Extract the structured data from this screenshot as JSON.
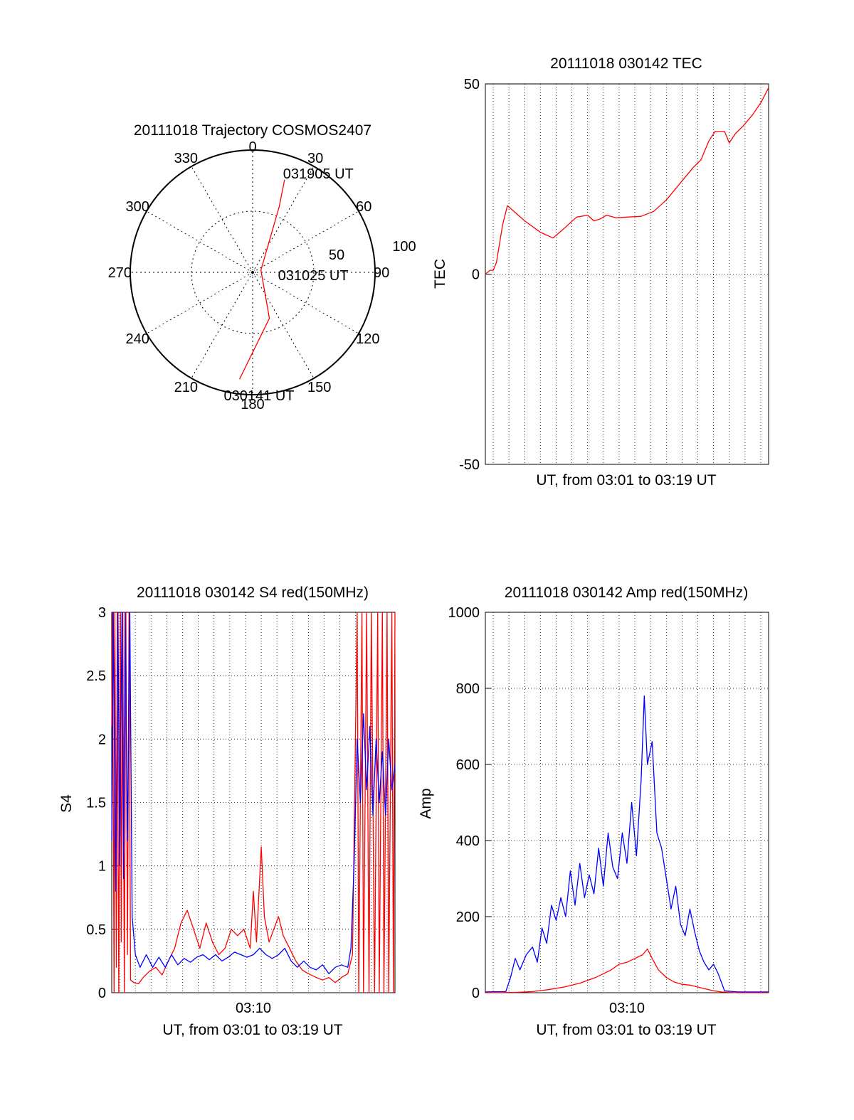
{
  "chart_data": [
    {
      "type": "polar",
      "title": "20111018 Trajectory COSMOS2407",
      "angle_labels": [
        "0",
        "30",
        "60",
        "90",
        "120",
        "150",
        "180",
        "210",
        "240",
        "270",
        "300",
        "330"
      ],
      "radius_labels": [
        "50",
        "100"
      ],
      "radius_range": [
        0,
        100
      ],
      "trajectory": {
        "color": "#ff0000",
        "points": [
          {
            "az": 187,
            "el_r": 88
          },
          {
            "az": 160,
            "el_r": 40
          },
          {
            "az": 75,
            "el_r": 7
          },
          {
            "az": 22,
            "el_r": 58
          },
          {
            "az": 19,
            "el_r": 80
          }
        ]
      },
      "annotations": [
        {
          "text": "031905 UT",
          "az": 19,
          "el_r": 80
        },
        {
          "text": "031025 UT",
          "az": 75,
          "el_r": 7
        },
        {
          "text": "030141 UT",
          "az": 187,
          "el_r": 88
        }
      ]
    },
    {
      "type": "line",
      "title": "20111018 030142 TEC",
      "xlabel": "UT, from 03:01 to 03:19 UT",
      "ylabel": "TEC",
      "xlim": [
        0,
        18
      ],
      "ylim": [
        -50,
        50
      ],
      "yticks": [
        "-50",
        "0",
        "50"
      ],
      "grid": true,
      "series": [
        {
          "color": "#ff0000",
          "points": [
            [
              0.0,
              0
            ],
            [
              0.3,
              1
            ],
            [
              0.5,
              1
            ],
            [
              0.7,
              3
            ],
            [
              0.9,
              8
            ],
            [
              1.1,
              13
            ],
            [
              1.4,
              18
            ],
            [
              2.5,
              14
            ],
            [
              3.5,
              11
            ],
            [
              4.3,
              9.5
            ],
            [
              5.0,
              12
            ],
            [
              5.8,
              15
            ],
            [
              6.5,
              15.5
            ],
            [
              6.9,
              14
            ],
            [
              7.3,
              14.5
            ],
            [
              7.7,
              15.5
            ],
            [
              8.3,
              14.8
            ],
            [
              9.0,
              15
            ],
            [
              9.9,
              15.2
            ],
            [
              10.7,
              16.5
            ],
            [
              11.5,
              19.5
            ],
            [
              12.5,
              24.5
            ],
            [
              13.2,
              28
            ],
            [
              13.7,
              30
            ],
            [
              14.2,
              35
            ],
            [
              14.6,
              37.5
            ],
            [
              15.2,
              37.5
            ],
            [
              15.5,
              34.5
            ],
            [
              15.9,
              37
            ],
            [
              16.4,
              39
            ],
            [
              17.0,
              42
            ],
            [
              17.5,
              45
            ],
            [
              18.0,
              49
            ]
          ]
        }
      ]
    },
    {
      "type": "line",
      "title": "20111018 030142 S4 red(150MHz)",
      "xlabel": "UT, from 03:01 to 03:19 UT",
      "ylabel": "S4",
      "xlim": [
        0,
        18
      ],
      "ylim": [
        0,
        3
      ],
      "xtick_label": "03:10",
      "xtick_value": 9,
      "yticks": [
        "0",
        "0.5",
        "1",
        "1.5",
        "2",
        "2.5",
        "3"
      ],
      "grid": true,
      "series": [
        {
          "color": "#ff0000",
          "points": [
            [
              0.0,
              2.1
            ],
            [
              0.05,
              3
            ],
            [
              0.15,
              0
            ],
            [
              0.2,
              3
            ],
            [
              0.3,
              0.2
            ],
            [
              0.35,
              3
            ],
            [
              0.45,
              0
            ],
            [
              0.55,
              3
            ],
            [
              0.6,
              0.4
            ],
            [
              0.7,
              3
            ],
            [
              0.8,
              0
            ],
            [
              0.9,
              3
            ],
            [
              1.0,
              0.3
            ],
            [
              1.1,
              3
            ],
            [
              1.2,
              0.1
            ],
            [
              1.4,
              0.08
            ],
            [
              1.7,
              0.07
            ],
            [
              2.0,
              0.12
            ],
            [
              2.4,
              0.17
            ],
            [
              2.8,
              0.2
            ],
            [
              3.2,
              0.14
            ],
            [
              3.6,
              0.25
            ],
            [
              4.0,
              0.35
            ],
            [
              4.4,
              0.55
            ],
            [
              4.8,
              0.65
            ],
            [
              5.2,
              0.5
            ],
            [
              5.6,
              0.35
            ],
            [
              6.0,
              0.55
            ],
            [
              6.4,
              0.4
            ],
            [
              6.8,
              0.3
            ],
            [
              7.2,
              0.35
            ],
            [
              7.6,
              0.5
            ],
            [
              8.0,
              0.45
            ],
            [
              8.4,
              0.5
            ],
            [
              8.8,
              0.35
            ],
            [
              9.0,
              0.8
            ],
            [
              9.2,
              0.4
            ],
            [
              9.5,
              1.15
            ],
            [
              9.7,
              0.6
            ],
            [
              10.0,
              0.4
            ],
            [
              10.3,
              0.5
            ],
            [
              10.6,
              0.6
            ],
            [
              10.9,
              0.45
            ],
            [
              11.3,
              0.35
            ],
            [
              11.7,
              0.25
            ],
            [
              12.1,
              0.18
            ],
            [
              12.5,
              0.15
            ],
            [
              13.0,
              0.12
            ],
            [
              13.4,
              0.1
            ],
            [
              13.8,
              0.12
            ],
            [
              14.2,
              0.08
            ],
            [
              14.6,
              0.12
            ],
            [
              15.0,
              0.15
            ],
            [
              15.3,
              0.3
            ],
            [
              15.6,
              3
            ],
            [
              15.7,
              0
            ],
            [
              15.9,
              3
            ],
            [
              16.0,
              0
            ],
            [
              16.2,
              3
            ],
            [
              16.35,
              0
            ],
            [
              16.5,
              3
            ],
            [
              16.7,
              0
            ],
            [
              16.9,
              3
            ],
            [
              17.0,
              0
            ],
            [
              17.2,
              3
            ],
            [
              17.3,
              0
            ],
            [
              17.5,
              3
            ],
            [
              17.6,
              0
            ],
            [
              17.8,
              3
            ],
            [
              17.9,
              0
            ],
            [
              18.0,
              3
            ]
          ]
        },
        {
          "color": "#0000ff",
          "points": [
            [
              0.0,
              1.2
            ],
            [
              0.1,
              3
            ],
            [
              0.25,
              0.8
            ],
            [
              0.4,
              3
            ],
            [
              0.5,
              1.0
            ],
            [
              0.65,
              3
            ],
            [
              0.75,
              0.9
            ],
            [
              0.85,
              3
            ],
            [
              1.0,
              1.2
            ],
            [
              1.15,
              3
            ],
            [
              1.3,
              0.6
            ],
            [
              1.5,
              0.3
            ],
            [
              1.8,
              0.2
            ],
            [
              2.2,
              0.3
            ],
            [
              2.6,
              0.2
            ],
            [
              3.0,
              0.28
            ],
            [
              3.4,
              0.2
            ],
            [
              3.8,
              0.3
            ],
            [
              4.2,
              0.22
            ],
            [
              4.6,
              0.27
            ],
            [
              5.0,
              0.24
            ],
            [
              5.4,
              0.28
            ],
            [
              5.8,
              0.3
            ],
            [
              6.2,
              0.26
            ],
            [
              6.6,
              0.3
            ],
            [
              7.0,
              0.25
            ],
            [
              7.4,
              0.28
            ],
            [
              7.8,
              0.32
            ],
            [
              8.2,
              0.3
            ],
            [
              8.6,
              0.28
            ],
            [
              9.0,
              0.3
            ],
            [
              9.4,
              0.35
            ],
            [
              9.8,
              0.3
            ],
            [
              10.2,
              0.27
            ],
            [
              10.6,
              0.3
            ],
            [
              11.0,
              0.35
            ],
            [
              11.4,
              0.25
            ],
            [
              11.8,
              0.2
            ],
            [
              12.2,
              0.25
            ],
            [
              12.6,
              0.2
            ],
            [
              13.0,
              0.18
            ],
            [
              13.4,
              0.22
            ],
            [
              13.8,
              0.15
            ],
            [
              14.2,
              0.2
            ],
            [
              14.6,
              0.22
            ],
            [
              15.0,
              0.2
            ],
            [
              15.2,
              0.35
            ],
            [
              15.4,
              1.0
            ],
            [
              15.6,
              2.0
            ],
            [
              15.8,
              1.5
            ],
            [
              16.0,
              2.2
            ],
            [
              16.2,
              1.6
            ],
            [
              16.4,
              2.1
            ],
            [
              16.6,
              1.4
            ],
            [
              16.8,
              2.0
            ],
            [
              17.0,
              1.5
            ],
            [
              17.2,
              1.9
            ],
            [
              17.4,
              1.4
            ],
            [
              17.6,
              2.0
            ],
            [
              17.8,
              1.6
            ],
            [
              18.0,
              1.8
            ]
          ]
        }
      ]
    },
    {
      "type": "line",
      "title": "20111018 030142 Amp red(150MHz)",
      "xlabel": "UT, from 03:01 to 03:19 UT",
      "ylabel": "Amp",
      "xlim": [
        0,
        18
      ],
      "ylim": [
        0,
        1000
      ],
      "xtick_label": "03:10",
      "xtick_value": 9,
      "yticks": [
        "0",
        "200",
        "400",
        "600",
        "800",
        "1000"
      ],
      "grid": true,
      "series": [
        {
          "color": "#0000ff",
          "points": [
            [
              0.0,
              2
            ],
            [
              1.3,
              3
            ],
            [
              1.6,
              40
            ],
            [
              1.9,
              90
            ],
            [
              2.2,
              60
            ],
            [
              2.6,
              100
            ],
            [
              3.0,
              120
            ],
            [
              3.3,
              80
            ],
            [
              3.6,
              170
            ],
            [
              3.9,
              130
            ],
            [
              4.2,
              230
            ],
            [
              4.5,
              190
            ],
            [
              4.8,
              250
            ],
            [
              5.1,
              200
            ],
            [
              5.4,
              320
            ],
            [
              5.7,
              230
            ],
            [
              6.0,
              340
            ],
            [
              6.3,
              250
            ],
            [
              6.6,
              310
            ],
            [
              6.9,
              260
            ],
            [
              7.2,
              380
            ],
            [
              7.5,
              280
            ],
            [
              7.8,
              420
            ],
            [
              8.1,
              330
            ],
            [
              8.4,
              300
            ],
            [
              8.7,
              420
            ],
            [
              9.0,
              340
            ],
            [
              9.3,
              500
            ],
            [
              9.6,
              360
            ],
            [
              9.9,
              560
            ],
            [
              10.1,
              780
            ],
            [
              10.3,
              600
            ],
            [
              10.6,
              660
            ],
            [
              10.9,
              420
            ],
            [
              11.2,
              380
            ],
            [
              11.5,
              300
            ],
            [
              11.8,
              220
            ],
            [
              12.1,
              280
            ],
            [
              12.4,
              180
            ],
            [
              12.7,
              150
            ],
            [
              13.0,
              220
            ],
            [
              13.3,
              160
            ],
            [
              13.6,
              110
            ],
            [
              13.9,
              80
            ],
            [
              14.2,
              60
            ],
            [
              14.5,
              75
            ],
            [
              14.8,
              50
            ],
            [
              15.2,
              5
            ],
            [
              16.0,
              2
            ],
            [
              18.0,
              2
            ]
          ]
        },
        {
          "color": "#ff0000",
          "points": [
            [
              0.0,
              0
            ],
            [
              2.0,
              1
            ],
            [
              3.0,
              3
            ],
            [
              4.0,
              8
            ],
            [
              5.0,
              15
            ],
            [
              6.0,
              25
            ],
            [
              7.0,
              40
            ],
            [
              7.5,
              50
            ],
            [
              8.0,
              60
            ],
            [
              8.5,
              75
            ],
            [
              9.0,
              80
            ],
            [
              9.5,
              90
            ],
            [
              10.0,
              100
            ],
            [
              10.3,
              115
            ],
            [
              10.6,
              90
            ],
            [
              11.0,
              60
            ],
            [
              11.5,
              40
            ],
            [
              12.0,
              28
            ],
            [
              12.5,
              22
            ],
            [
              13.0,
              20
            ],
            [
              13.5,
              15
            ],
            [
              14.0,
              10
            ],
            [
              14.5,
              5
            ],
            [
              15.0,
              2
            ],
            [
              16.0,
              0
            ],
            [
              18.0,
              0
            ]
          ]
        }
      ]
    }
  ]
}
